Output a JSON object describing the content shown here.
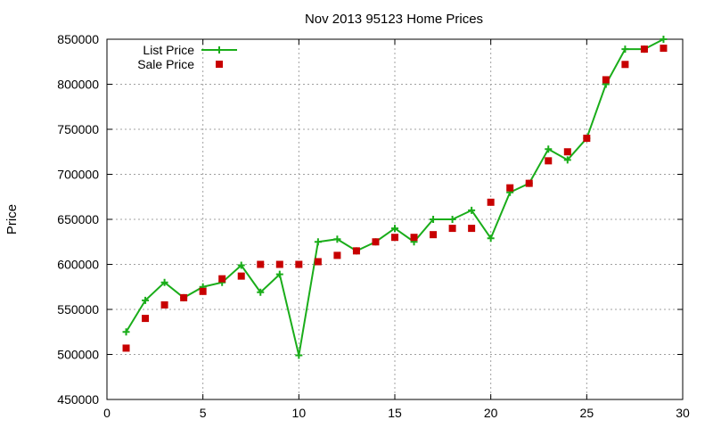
{
  "chart_data": {
    "type": "line",
    "title": "Nov 2013 95123 Home Prices",
    "xlabel": "",
    "ylabel": "Price",
    "xlim": [
      0,
      30
    ],
    "ylim": [
      450000,
      850000
    ],
    "x_ticks": [
      0,
      5,
      10,
      15,
      20,
      25,
      30
    ],
    "y_ticks": [
      450000,
      500000,
      550000,
      600000,
      650000,
      700000,
      750000,
      800000,
      850000
    ],
    "grid": true,
    "legend_position": "top-left",
    "series": [
      {
        "name": "List Price",
        "style": "line-plus",
        "color": "#1aad1a",
        "x": [
          1,
          2,
          3,
          4,
          5,
          6,
          7,
          8,
          9,
          10,
          11,
          12,
          13,
          14,
          15,
          16,
          17,
          18,
          19,
          20,
          21,
          22,
          23,
          24,
          25,
          26,
          27,
          28,
          29
        ],
        "values": [
          525000,
          560000,
          580000,
          563000,
          575000,
          580000,
          599000,
          569000,
          589000,
          499000,
          625000,
          628000,
          615000,
          625000,
          640000,
          625000,
          650000,
          650000,
          660000,
          629000,
          680000,
          690000,
          728000,
          716000,
          740000,
          800000,
          839000,
          839000,
          850000
        ]
      },
      {
        "name": "Sale Price",
        "style": "square-markers",
        "color": "#c80000",
        "x": [
          1,
          2,
          3,
          4,
          5,
          6,
          7,
          8,
          9,
          10,
          11,
          12,
          13,
          14,
          15,
          16,
          17,
          18,
          19,
          20,
          21,
          22,
          23,
          24,
          25,
          26,
          27,
          28,
          29
        ],
        "values": [
          507000,
          540000,
          555000,
          563000,
          570000,
          584000,
          587000,
          600000,
          600000,
          600000,
          603000,
          610000,
          615000,
          625000,
          630000,
          630000,
          633000,
          640000,
          640000,
          669000,
          685000,
          690000,
          715000,
          725000,
          740000,
          805000,
          822000,
          839000,
          840000
        ]
      }
    ]
  }
}
